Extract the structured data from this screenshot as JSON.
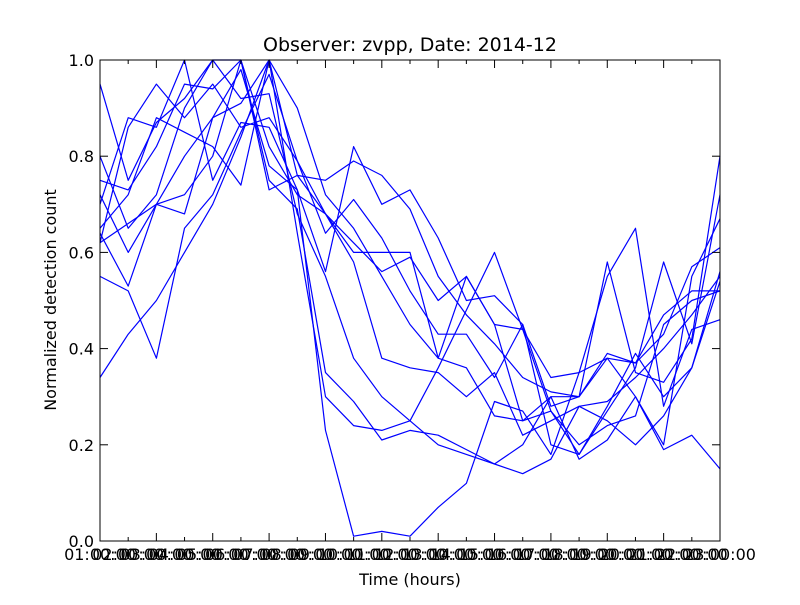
{
  "chart_data": {
    "type": "line",
    "title": "Observer: zvpp, Date: 2014-12",
    "xlabel": "Time (hours)",
    "ylabel": "Normalized detection count",
    "xlim": [
      0,
      22
    ],
    "ylim": [
      0.0,
      1.0
    ],
    "grid": false,
    "x_ticks": [
      {
        "value": 0,
        "label": "01:00:00"
      },
      {
        "value": 1,
        "label": "02:00:00"
      },
      {
        "value": 2,
        "label": "03:00:00"
      },
      {
        "value": 3,
        "label": "04:00:00"
      },
      {
        "value": 4,
        "label": "05:00:00"
      },
      {
        "value": 5,
        "label": "06:00:00"
      },
      {
        "value": 6,
        "label": "07:00:00"
      },
      {
        "value": 7,
        "label": "08:00:00"
      },
      {
        "value": 8,
        "label": "09:00:00"
      },
      {
        "value": 9,
        "label": "10:00:00"
      },
      {
        "value": 10,
        "label": "11:00:00"
      },
      {
        "value": 11,
        "label": "12:00:00"
      },
      {
        "value": 12,
        "label": "13:00:00"
      },
      {
        "value": 13,
        "label": "14:00:00"
      },
      {
        "value": 14,
        "label": "15:00:00"
      },
      {
        "value": 15,
        "label": "16:00:00"
      },
      {
        "value": 16,
        "label": "17:00:00"
      },
      {
        "value": 17,
        "label": "18:00:00"
      },
      {
        "value": 18,
        "label": "19:00:00"
      },
      {
        "value": 19,
        "label": "20:00:00"
      },
      {
        "value": 20,
        "label": "21:00:00"
      },
      {
        "value": 21,
        "label": "22:00:00"
      },
      {
        "value": 22,
        "label": "23:00:00"
      }
    ],
    "y_ticks": [
      {
        "value": 0.0,
        "label": "0.0"
      },
      {
        "value": 0.2,
        "label": "0.2"
      },
      {
        "value": 0.4,
        "label": "0.4"
      },
      {
        "value": 0.6,
        "label": "0.6"
      },
      {
        "value": 0.8,
        "label": "0.8"
      },
      {
        "value": 1.0,
        "label": "1.0"
      }
    ],
    "line_color": "#0000ff",
    "x": [
      0,
      1,
      2,
      3,
      4,
      5,
      6,
      7,
      8,
      9,
      10,
      11,
      12,
      13,
      14,
      15,
      16,
      17,
      18,
      19,
      20,
      21,
      22
    ],
    "series": [
      {
        "values": [
          0.95,
          0.75,
          0.87,
          0.92,
          1.0,
          0.92,
          0.93,
          0.68,
          0.55,
          0.38,
          0.3,
          0.25,
          0.2,
          0.18,
          0.16,
          0.14,
          0.17,
          0.28,
          0.25,
          0.2,
          0.26,
          0.36,
          0.54
        ]
      },
      {
        "values": [
          0.62,
          0.66,
          0.7,
          0.8,
          0.88,
          0.91,
          1.0,
          0.9,
          0.72,
          0.65,
          0.55,
          0.45,
          0.38,
          0.36,
          0.26,
          0.25,
          0.27,
          0.2,
          0.24,
          0.26,
          0.45,
          0.5,
          0.52
        ]
      },
      {
        "values": [
          0.34,
          0.43,
          0.5,
          0.6,
          0.7,
          0.84,
          1.0,
          0.76,
          0.75,
          0.79,
          0.76,
          0.69,
          0.55,
          0.47,
          0.41,
          0.34,
          0.31,
          0.3,
          0.39,
          0.37,
          0.47,
          0.52,
          0.52
        ]
      },
      {
        "values": [
          0.55,
          0.52,
          0.38,
          0.65,
          0.72,
          0.85,
          0.97,
          0.79,
          0.64,
          0.71,
          0.63,
          0.52,
          0.43,
          0.43,
          0.34,
          0.45,
          0.28,
          0.3,
          0.38,
          0.3,
          0.2,
          0.55,
          0.67
        ]
      },
      {
        "values": [
          0.72,
          0.6,
          0.7,
          0.72,
          0.8,
          1.0,
          0.82,
          0.72,
          0.68,
          0.6,
          0.6,
          0.6,
          0.38,
          0.55,
          0.45,
          0.25,
          0.3,
          0.17,
          0.21,
          0.3,
          0.19,
          0.22,
          0.15
        ]
      },
      {
        "values": [
          0.7,
          0.88,
          0.86,
          1.0,
          0.75,
          0.87,
          0.86,
          0.73,
          0.56,
          0.82,
          0.7,
          0.73,
          0.63,
          0.5,
          0.51,
          0.45,
          0.2,
          0.18,
          0.28,
          0.39,
          0.3,
          0.36,
          0.56
        ]
      },
      {
        "values": [
          0.8,
          0.65,
          0.72,
          0.9,
          1.0,
          1.0,
          0.73,
          0.76,
          0.68,
          0.58,
          0.38,
          0.36,
          0.35,
          0.3,
          0.35,
          0.22,
          0.25,
          0.28,
          0.29,
          0.34,
          0.4,
          0.47,
          0.55
        ]
      },
      {
        "values": [
          0.62,
          0.86,
          0.95,
          0.88,
          0.95,
          0.86,
          0.88,
          0.79,
          0.68,
          0.62,
          0.56,
          0.59,
          0.5,
          0.55,
          0.45,
          0.44,
          0.34,
          0.35,
          0.38,
          0.37,
          0.43,
          0.57,
          0.61
        ]
      },
      {
        "values": [
          0.75,
          0.73,
          0.82,
          0.95,
          0.94,
          1.0,
          0.75,
          0.69,
          0.35,
          0.29,
          0.21,
          0.23,
          0.22,
          0.19,
          0.16,
          0.2,
          0.3,
          0.3,
          0.58,
          0.35,
          0.33,
          0.42,
          0.8
        ]
      },
      {
        "values": [
          0.65,
          0.72,
          0.88,
          0.85,
          0.82,
          0.74,
          1.0,
          0.64,
          0.3,
          0.24,
          0.23,
          0.25,
          0.36,
          0.48,
          0.6,
          0.44,
          0.27,
          0.18,
          0.27,
          0.36,
          0.58,
          0.41,
          0.72
        ]
      },
      {
        "values": [
          0.64,
          0.53,
          0.7,
          0.68,
          0.88,
          0.98,
          0.78,
          0.73,
          0.23,
          0.01,
          0.02,
          0.01,
          0.07,
          0.12,
          0.29,
          0.27,
          0.18,
          0.35,
          0.55,
          0.65,
          0.28,
          0.44,
          0.46
        ]
      }
    ]
  }
}
